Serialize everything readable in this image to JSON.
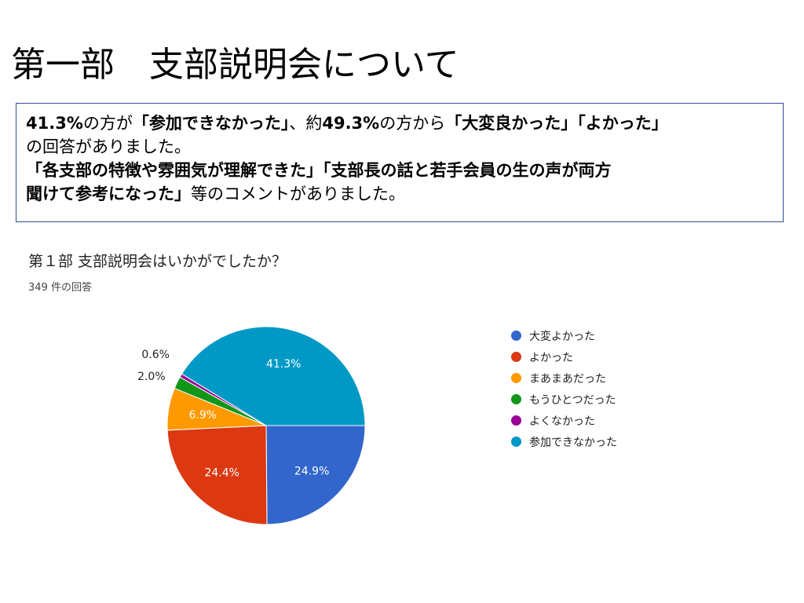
{
  "slide": {
    "title": "第一部　支部説明会について"
  },
  "summary": {
    "line1": {
      "p1": "41.3%",
      "p2": "の方が",
      "p3": "「参加できなかった」",
      "p4": "、約",
      "p5": "49.3%",
      "p6": "の方から",
      "p7": "「大変良かった」「よかった」"
    },
    "line2": "の回答がありました。",
    "line3": "「各支部の特徴や雰囲気が理解できた」「支部長の話と若手会員の生の声が両方",
    "line4": {
      "p1": "聞けて参考になった」",
      "p2": "等のコメントがありました。"
    }
  },
  "chart_data": {
    "type": "pie",
    "title": "第１部 支部説明会はいかがでしたか？",
    "subtitle": "349 件の回答",
    "legend_position": "right",
    "slices": [
      {
        "name": "大変よかった",
        "value": 24.9,
        "label": "24.9%",
        "color": "#3366cc"
      },
      {
        "name": "よかった",
        "value": 24.4,
        "label": "24.4%",
        "color": "#dc3912"
      },
      {
        "name": "まあまあだった",
        "value": 6.9,
        "label": "6.9%",
        "color": "#ff9900"
      },
      {
        "name": "もうひとつだった",
        "value": 2.0,
        "label": "2.0%",
        "color": "#109618"
      },
      {
        "name": "よくなかった",
        "value": 0.6,
        "label": "0.6%",
        "color": "#990099"
      },
      {
        "name": "参加できなかった",
        "value": 41.3,
        "label": "41.3%",
        "color": "#0099c6"
      }
    ]
  }
}
